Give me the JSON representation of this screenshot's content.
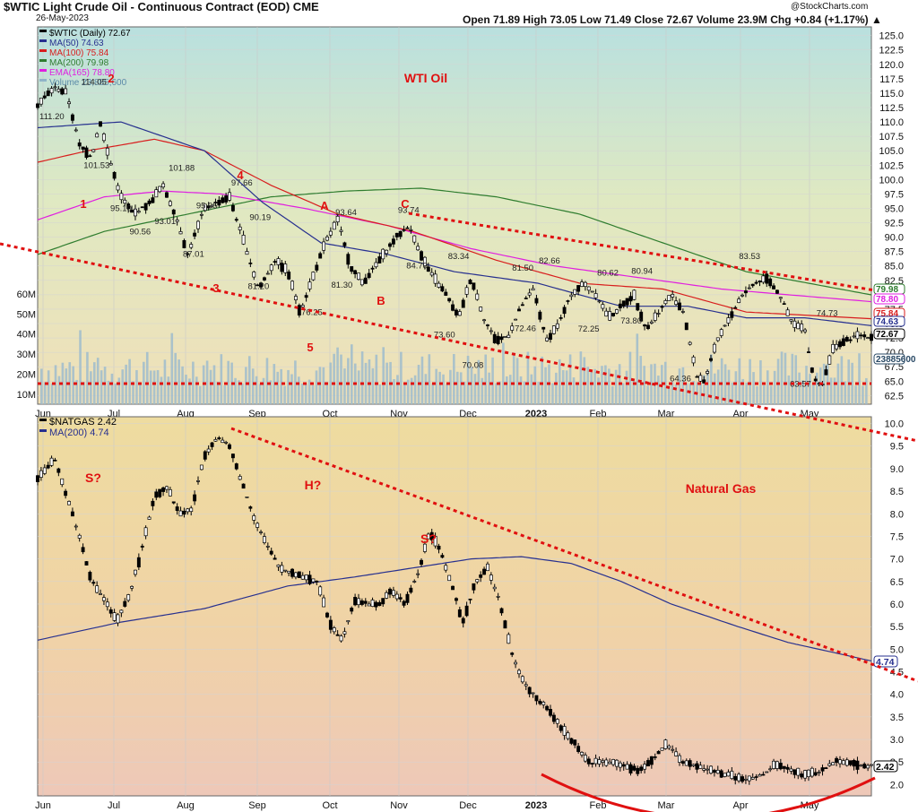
{
  "header": {
    "title": "$WTIC Light Crude Oil - Continuous Contract (EOD) CME",
    "date": "26-May-2023",
    "ohlc": "Open 71.89 High 73.05 Low 71.49 Close 72.67 Volume 23.9M Chg +0.84 (+1.17%) ▲",
    "watermark": "@StockCharts.com"
  },
  "chart_data": [
    {
      "type": "candlestick",
      "title": "WTI Oil",
      "legend": [
        {
          "name": "$WTIC (Daily) 72.67",
          "color": "#000000"
        },
        {
          "name": "MA(50) 74.63",
          "color": "#27308f"
        },
        {
          "name": "MA(100) 75.84",
          "color": "#d81e1e"
        },
        {
          "name": "MA(200) 79.98",
          "color": "#2f7d2f"
        },
        {
          "name": "EMA(165) 78.80",
          "color": "#e01ee0"
        },
        {
          "name": "Volume 23,885,600",
          "color": "#8fb4c8"
        }
      ],
      "x_ticks": [
        "Jun",
        "Jul",
        "Aug",
        "Sep",
        "Oct",
        "Nov",
        "Dec",
        "2023",
        "Feb",
        "Mar",
        "Apr",
        "May"
      ],
      "y_ticks": [
        "125.0",
        "122.5",
        "120.0",
        "117.5",
        "115.0",
        "112.5",
        "110.0",
        "107.5",
        "105.0",
        "102.5",
        "100.0",
        "97.5",
        "95.0",
        "92.5",
        "90.0",
        "87.5",
        "85.0",
        "82.5",
        "80.0",
        "77.5",
        "75.0",
        "72.5",
        "70.0",
        "67.5",
        "65.0",
        "62.5"
      ],
      "ylim": [
        61,
        126.5
      ],
      "volume_ticks": [
        "60M",
        "50M",
        "40M",
        "30M",
        "20M",
        "10M"
      ],
      "price_path": [
        [
          0,
          113
        ],
        [
          0.02,
          116
        ],
        [
          0.035,
          115
        ],
        [
          0.05,
          106
        ],
        [
          0.065,
          104
        ],
        [
          0.075,
          110
        ],
        [
          0.085,
          104
        ],
        [
          0.1,
          97
        ],
        [
          0.115,
          94
        ],
        [
          0.135,
          96
        ],
        [
          0.15,
          99
        ],
        [
          0.165,
          94
        ],
        [
          0.18,
          87
        ],
        [
          0.2,
          95
        ],
        [
          0.215,
          96
        ],
        [
          0.23,
          97
        ],
        [
          0.25,
          88
        ],
        [
          0.265,
          81
        ],
        [
          0.285,
          86
        ],
        [
          0.3,
          84
        ],
        [
          0.315,
          77
        ],
        [
          0.33,
          83
        ],
        [
          0.345,
          89
        ],
        [
          0.36,
          93
        ],
        [
          0.375,
          85
        ],
        [
          0.39,
          82
        ],
        [
          0.41,
          86
        ],
        [
          0.43,
          90
        ],
        [
          0.445,
          92
        ],
        [
          0.46,
          87
        ],
        [
          0.47,
          84
        ],
        [
          0.49,
          80
        ],
        [
          0.505,
          76
        ],
        [
          0.52,
          83
        ],
        [
          0.535,
          76
        ],
        [
          0.55,
          72
        ],
        [
          0.565,
          73
        ],
        [
          0.58,
          78
        ],
        [
          0.595,
          81
        ],
        [
          0.61,
          72
        ],
        [
          0.625,
          75
        ],
        [
          0.64,
          80
        ],
        [
          0.655,
          82
        ],
        [
          0.67,
          80
        ],
        [
          0.685,
          76
        ],
        [
          0.7,
          78
        ],
        [
          0.715,
          80
        ],
        [
          0.73,
          74
        ],
        [
          0.745,
          77
        ],
        [
          0.76,
          80
        ],
        [
          0.775,
          77
        ],
        [
          0.79,
          66
        ],
        [
          0.8,
          65
        ],
        [
          0.815,
          72
        ],
        [
          0.83,
          76
        ],
        [
          0.845,
          80
        ],
        [
          0.86,
          82
        ],
        [
          0.875,
          83
        ],
        [
          0.89,
          80
        ],
        [
          0.905,
          75
        ],
        [
          0.92,
          74
        ],
        [
          0.93,
          66
        ],
        [
          0.94,
          64
        ],
        [
          0.955,
          71
        ],
        [
          0.97,
          72
        ],
        [
          0.985,
          73
        ],
        [
          1,
          72.67
        ]
      ],
      "ma50": [
        [
          0,
          109
        ],
        [
          0.1,
          110
        ],
        [
          0.2,
          105
        ],
        [
          0.27,
          96
        ],
        [
          0.34,
          89
        ],
        [
          0.42,
          87
        ],
        [
          0.5,
          84
        ],
        [
          0.6,
          82
        ],
        [
          0.7,
          78
        ],
        [
          0.78,
          78
        ],
        [
          0.85,
          76
        ],
        [
          0.92,
          76
        ],
        [
          1,
          74.63
        ]
      ],
      "ma100": [
        [
          0,
          103
        ],
        [
          0.06,
          105
        ],
        [
          0.14,
          107
        ],
        [
          0.2,
          105
        ],
        [
          0.28,
          99
        ],
        [
          0.36,
          94
        ],
        [
          0.45,
          91
        ],
        [
          0.55,
          86
        ],
        [
          0.65,
          82
        ],
        [
          0.75,
          81
        ],
        [
          0.85,
          77
        ],
        [
          1,
          75.84
        ]
      ],
      "ma200": [
        [
          0,
          87
        ],
        [
          0.08,
          91
        ],
        [
          0.18,
          94
        ],
        [
          0.28,
          97
        ],
        [
          0.37,
          98
        ],
        [
          0.46,
          98.5
        ],
        [
          0.55,
          97
        ],
        [
          0.65,
          94
        ],
        [
          0.75,
          89
        ],
        [
          0.85,
          84
        ],
        [
          1,
          79.98
        ]
      ],
      "ema165": [
        [
          0,
          93
        ],
        [
          0.08,
          97
        ],
        [
          0.15,
          98
        ],
        [
          0.22,
          97.5
        ],
        [
          0.32,
          95
        ],
        [
          0.42,
          92
        ],
        [
          0.52,
          88
        ],
        [
          0.62,
          85
        ],
        [
          0.72,
          83
        ],
        [
          0.82,
          81
        ],
        [
          0.9,
          80
        ],
        [
          1,
          78.8
        ]
      ],
      "annotations": [
        {
          "text": "111.20",
          "x": 0.0,
          "y": 110.5
        },
        {
          "text": "114.05",
          "x": 0.05,
          "y": 116.5
        },
        {
          "text": "101.53",
          "x": 0.053,
          "y": 102
        },
        {
          "text": "95.10",
          "x": 0.085,
          "y": 94.5
        },
        {
          "text": "101.88",
          "x": 0.155,
          "y": 101.5
        },
        {
          "text": "90.56",
          "x": 0.108,
          "y": 90.5
        },
        {
          "text": "93.01",
          "x": 0.138,
          "y": 92.3
        },
        {
          "text": "95.05",
          "x": 0.188,
          "y": 95
        },
        {
          "text": "87.01",
          "x": 0.172,
          "y": 86.6
        },
        {
          "text": "97.66",
          "x": 0.23,
          "y": 99
        },
        {
          "text": "90.19",
          "x": 0.252,
          "y": 93
        },
        {
          "text": "81.20",
          "x": 0.25,
          "y": 81
        },
        {
          "text": "76.25",
          "x": 0.314,
          "y": 76.5
        },
        {
          "text": "93.64",
          "x": 0.355,
          "y": 93.8
        },
        {
          "text": "81.30",
          "x": 0.35,
          "y": 81.2
        },
        {
          "text": "93.74",
          "x": 0.43,
          "y": 94.2
        },
        {
          "text": "84.70",
          "x": 0.44,
          "y": 84.6
        },
        {
          "text": "83.34",
          "x": 0.49,
          "y": 86.2
        },
        {
          "text": "73.60",
          "x": 0.473,
          "y": 72.6
        },
        {
          "text": "70.08",
          "x": 0.507,
          "y": 67.3
        },
        {
          "text": "81.50",
          "x": 0.567,
          "y": 84.2
        },
        {
          "text": "72.46",
          "x": 0.57,
          "y": 73.7
        },
        {
          "text": "82.66",
          "x": 0.599,
          "y": 85.4
        },
        {
          "text": "72.25",
          "x": 0.646,
          "y": 73.6
        },
        {
          "text": "80.62",
          "x": 0.669,
          "y": 83.3
        },
        {
          "text": "73.80",
          "x": 0.697,
          "y": 75
        },
        {
          "text": "80.94",
          "x": 0.71,
          "y": 83.6
        },
        {
          "text": "64.36",
          "x": 0.756,
          "y": 65
        },
        {
          "text": "83.53",
          "x": 0.839,
          "y": 86.2
        },
        {
          "text": "63.57",
          "x": 0.9,
          "y": 64
        },
        {
          "text": "74.73",
          "x": 0.932,
          "y": 76.3
        }
      ],
      "wave_labels": [
        "1",
        "2",
        "3",
        "4",
        "5",
        "A",
        "B",
        "C"
      ],
      "right_labels": {
        "ma200": "79.98",
        "ema165": "78.80",
        "ma100": "75.84",
        "ma50": "74.63",
        "close": "72.67",
        "volume": "23885600"
      }
    },
    {
      "type": "candlestick",
      "title": "Natural Gas",
      "legend": [
        {
          "name": "$NATGAS 2.42",
          "color": "#000000"
        },
        {
          "name": "MA(200) 4.74",
          "color": "#27308f"
        }
      ],
      "x_ticks": [
        "Jun",
        "Jul",
        "Aug",
        "Sep",
        "Oct",
        "Nov",
        "Dec",
        "2023",
        "Feb",
        "Mar",
        "Apr",
        "May"
      ],
      "y_ticks": [
        "10.0",
        "9.5",
        "9.0",
        "8.5",
        "8.0",
        "7.5",
        "7.0",
        "6.5",
        "6.0",
        "5.5",
        "5.0",
        "4.5",
        "4.0",
        "3.5",
        "3.0",
        "2.5",
        "2.0"
      ],
      "ylim": [
        1.75,
        10.15
      ],
      "price_path": [
        [
          0,
          8.8
        ],
        [
          0.02,
          9.2
        ],
        [
          0.035,
          8.4
        ],
        [
          0.05,
          7.5
        ],
        [
          0.065,
          6.5
        ],
        [
          0.08,
          6.1
        ],
        [
          0.095,
          5.6
        ],
        [
          0.11,
          6.2
        ],
        [
          0.125,
          7.2
        ],
        [
          0.14,
          8.4
        ],
        [
          0.155,
          8.6
        ],
        [
          0.17,
          8.0
        ],
        [
          0.185,
          8.1
        ],
        [
          0.2,
          9.3
        ],
        [
          0.215,
          9.7
        ],
        [
          0.23,
          9.5
        ],
        [
          0.245,
          8.7
        ],
        [
          0.26,
          7.9
        ],
        [
          0.275,
          7.3
        ],
        [
          0.29,
          6.8
        ],
        [
          0.305,
          6.7
        ],
        [
          0.32,
          6.6
        ],
        [
          0.335,
          6.5
        ],
        [
          0.35,
          5.6
        ],
        [
          0.365,
          5.2
        ],
        [
          0.38,
          6.1
        ],
        [
          0.395,
          6.0
        ],
        [
          0.41,
          6.0
        ],
        [
          0.425,
          6.3
        ],
        [
          0.44,
          6.0
        ],
        [
          0.455,
          6.6
        ],
        [
          0.47,
          7.6
        ],
        [
          0.485,
          7.1
        ],
        [
          0.5,
          6.2
        ],
        [
          0.51,
          5.6
        ],
        [
          0.525,
          6.5
        ],
        [
          0.54,
          6.8
        ],
        [
          0.555,
          6.0
        ],
        [
          0.57,
          4.8
        ],
        [
          0.585,
          4.2
        ],
        [
          0.6,
          3.9
        ],
        [
          0.615,
          3.6
        ],
        [
          0.63,
          3.2
        ],
        [
          0.645,
          2.9
        ],
        [
          0.66,
          2.5
        ],
        [
          0.68,
          2.5
        ],
        [
          0.7,
          2.45
        ],
        [
          0.72,
          2.3
        ],
        [
          0.74,
          2.6
        ],
        [
          0.755,
          2.9
        ],
        [
          0.77,
          2.55
        ],
        [
          0.79,
          2.4
        ],
        [
          0.81,
          2.3
        ],
        [
          0.83,
          2.2
        ],
        [
          0.85,
          2.1
        ],
        [
          0.87,
          2.2
        ],
        [
          0.885,
          2.45
        ],
        [
          0.9,
          2.35
        ],
        [
          0.92,
          2.2
        ],
        [
          0.94,
          2.3
        ],
        [
          0.96,
          2.55
        ],
        [
          0.98,
          2.45
        ],
        [
          1,
          2.42
        ]
      ],
      "ma200": [
        [
          0,
          5.2
        ],
        [
          0.1,
          5.6
        ],
        [
          0.2,
          5.9
        ],
        [
          0.3,
          6.4
        ],
        [
          0.38,
          6.6
        ],
        [
          0.45,
          6.8
        ],
        [
          0.52,
          7.0
        ],
        [
          0.58,
          7.05
        ],
        [
          0.64,
          6.9
        ],
        [
          0.7,
          6.5
        ],
        [
          0.76,
          6.0
        ],
        [
          0.84,
          5.5
        ],
        [
          0.9,
          5.15
        ],
        [
          1,
          4.74
        ]
      ],
      "pattern_labels": [
        "S?",
        "H?",
        "S?"
      ],
      "right_labels": {
        "ma200": "4.74",
        "close": "2.42"
      }
    }
  ]
}
